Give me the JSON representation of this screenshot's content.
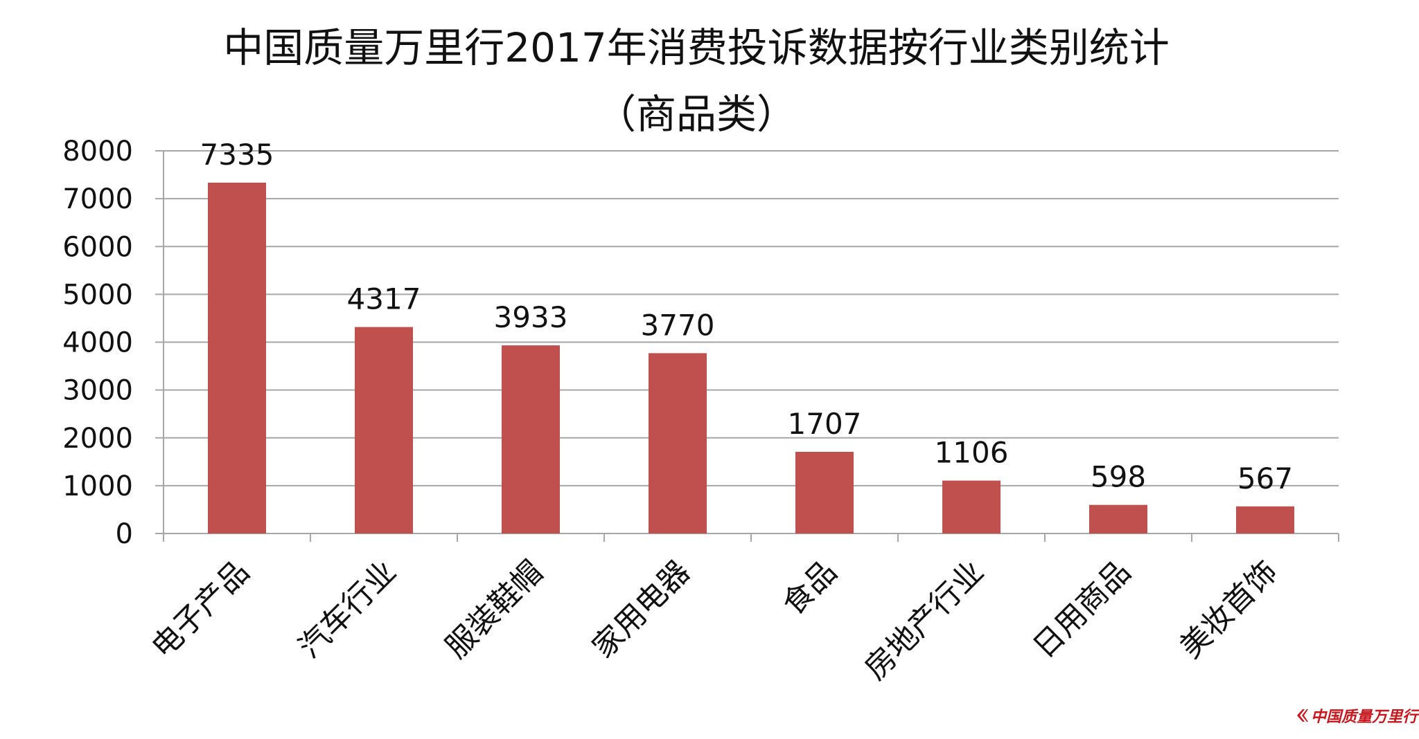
{
  "chart_data": {
    "type": "bar",
    "title": "中国质量万里行2017年消费投诉数据按行业类别统计",
    "subtitle": "（商品类）",
    "categories": [
      "电子产品",
      "汽车行业",
      "服装鞋帽",
      "家用电器",
      "食品",
      "房地产行业",
      "日用商品",
      "美妆首饰"
    ],
    "values": [
      7335,
      4317,
      3933,
      3770,
      1707,
      1106,
      598,
      567
    ],
    "yticks": [
      "0",
      "1000",
      "2000",
      "3000",
      "4000",
      "5000",
      "6000",
      "7000",
      "8000"
    ],
    "ylim": [
      0,
      8000
    ],
    "grid": true,
    "legend": "none",
    "bar_color": "#c0504d",
    "grid_color": "#a6a6a6"
  },
  "logo": {
    "text": "中国质量万里行",
    "color": "#c8161d"
  }
}
